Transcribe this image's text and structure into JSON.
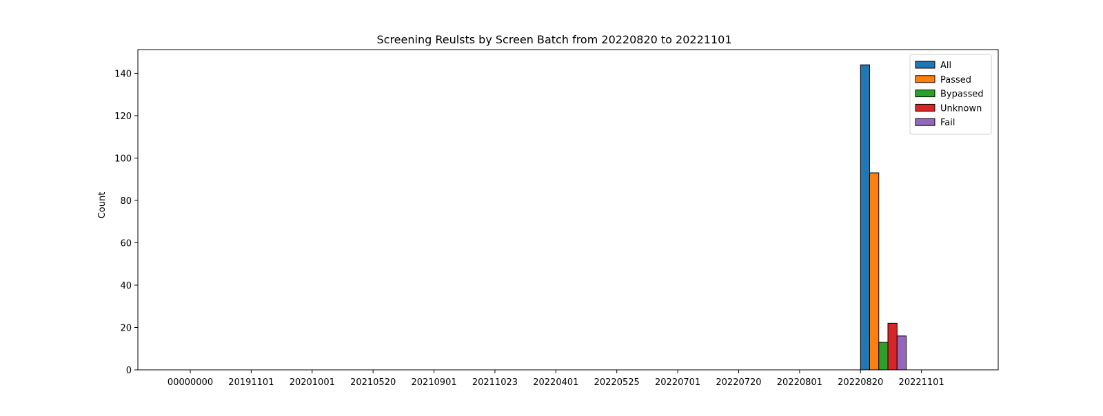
{
  "chart_data": {
    "type": "bar",
    "title": "Screening Reulsts by Screen Batch from 20220820 to 20221101",
    "xlabel": "",
    "ylabel": "Count",
    "ylim": [
      0,
      151.2
    ],
    "yticks": [
      0,
      20,
      40,
      60,
      80,
      100,
      120,
      140
    ],
    "categories": [
      "00000000",
      "20191101",
      "20201001",
      "20210520",
      "20210901",
      "20211023",
      "20220401",
      "20220525",
      "20220701",
      "20220720",
      "20220801",
      "20220820",
      "20221101"
    ],
    "series": [
      {
        "name": "All",
        "color": "#1f77b4",
        "values": [
          0,
          0,
          0,
          0,
          0,
          0,
          0,
          0,
          0,
          0,
          0,
          144,
          0
        ]
      },
      {
        "name": "Passed",
        "color": "#ff7f0e",
        "values": [
          0,
          0,
          0,
          0,
          0,
          0,
          0,
          0,
          0,
          0,
          0,
          93,
          0
        ]
      },
      {
        "name": "Bypassed",
        "color": "#2ca02c",
        "values": [
          0,
          0,
          0,
          0,
          0,
          0,
          0,
          0,
          0,
          0,
          0,
          13,
          0
        ]
      },
      {
        "name": "Unknown",
        "color": "#d62728",
        "values": [
          0,
          0,
          0,
          0,
          0,
          0,
          0,
          0,
          0,
          0,
          0,
          22,
          0
        ]
      },
      {
        "name": "Fail",
        "color": "#9467bd",
        "values": [
          0,
          0,
          0,
          0,
          0,
          0,
          0,
          0,
          0,
          0,
          0,
          16,
          0
        ]
      }
    ],
    "grid": false,
    "legend_position": "top-right"
  }
}
